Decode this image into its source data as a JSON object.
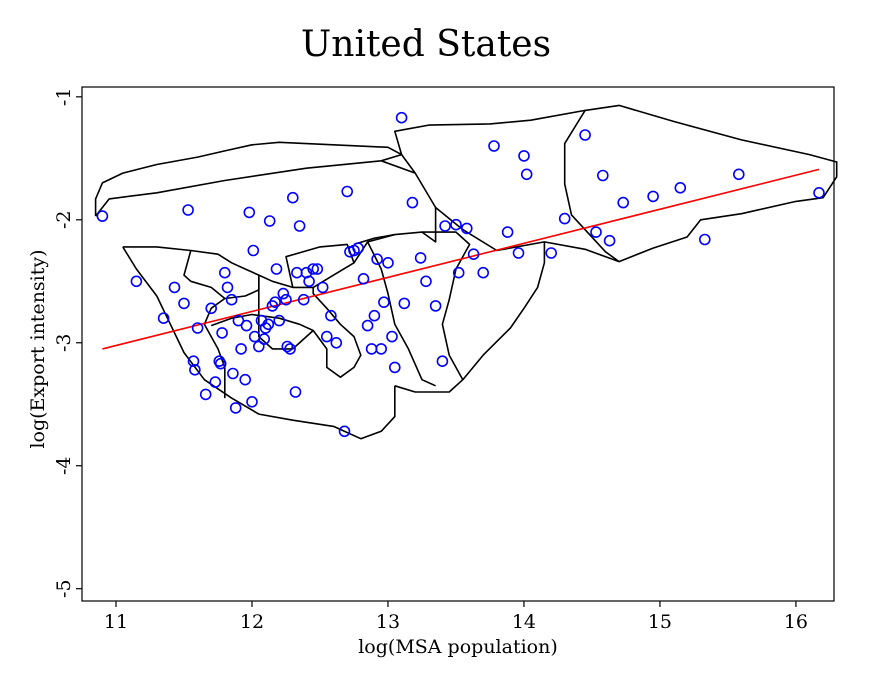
{
  "chart_data": {
    "type": "scatter",
    "title": "United States",
    "xlabel": "log(MSA population)",
    "ylabel": "log(Export intensity)",
    "xlim": [
      10.75,
      16.28
    ],
    "ylim": [
      -5.1,
      -0.92
    ],
    "xticks": [
      {
        "value": 11,
        "label": "11"
      },
      {
        "value": 12,
        "label": "12"
      },
      {
        "value": 13,
        "label": "13"
      },
      {
        "value": 14,
        "label": "14"
      },
      {
        "value": 15,
        "label": "15"
      },
      {
        "value": 16,
        "label": "16"
      }
    ],
    "yticks": [
      {
        "value": -1,
        "label": "-1"
      },
      {
        "value": -2,
        "label": "-2"
      },
      {
        "value": -3,
        "label": "-3"
      },
      {
        "value": -4,
        "label": "-4"
      },
      {
        "value": -5,
        "label": "-5"
      }
    ],
    "grid": false,
    "colors": {
      "points": "#0000ff",
      "fit_line": "#ff0000",
      "regions": "#000000"
    },
    "fit_line": {
      "x": [
        10.9,
        16.17
      ],
      "y": [
        -3.05,
        -1.59
      ]
    },
    "regions": [
      [
        [
          10.85,
          -1.97
        ],
        [
          10.95,
          -1.83
        ],
        [
          11.3,
          -1.78
        ],
        [
          11.8,
          -1.68
        ],
        [
          12.4,
          -1.58
        ],
        [
          12.95,
          -1.52
        ],
        [
          13.1,
          -1.47
        ],
        [
          13.0,
          -1.41
        ],
        [
          12.2,
          -1.37
        ],
        [
          12.0,
          -1.39
        ],
        [
          11.8,
          -1.44
        ],
        [
          11.6,
          -1.49
        ],
        [
          11.3,
          -1.55
        ],
        [
          11.05,
          -1.62
        ],
        [
          10.9,
          -1.7
        ],
        [
          10.85,
          -1.83
        ],
        [
          10.85,
          -1.97
        ]
      ],
      [
        [
          13.1,
          -1.47
        ],
        [
          13.05,
          -1.28
        ],
        [
          13.3,
          -1.23
        ],
        [
          13.75,
          -1.22
        ],
        [
          14.05,
          -1.19
        ],
        [
          14.45,
          -1.11
        ],
        [
          14.7,
          -1.07
        ],
        [
          15.1,
          -1.2
        ],
        [
          15.6,
          -1.35
        ],
        [
          16.1,
          -1.47
        ],
        [
          16.3,
          -1.53
        ],
        [
          16.3,
          -1.65
        ],
        [
          16.2,
          -1.82
        ],
        [
          16.0,
          -1.85
        ],
        [
          15.6,
          -1.95
        ],
        [
          15.3,
          -2.0
        ],
        [
          15.2,
          -2.14
        ],
        [
          14.95,
          -2.23
        ],
        [
          14.7,
          -2.34
        ],
        [
          14.45,
          -2.24
        ],
        [
          14.15,
          -2.18
        ],
        [
          13.8,
          -2.25
        ],
        [
          13.55,
          -2.08
        ],
        [
          13.35,
          -1.9
        ],
        [
          13.2,
          -1.62
        ],
        [
          13.1,
          -1.47
        ]
      ],
      [
        [
          14.45,
          -1.11
        ],
        [
          14.3,
          -1.38
        ],
        [
          14.3,
          -1.71
        ],
        [
          14.35,
          -1.96
        ],
        [
          14.6,
          -2.26
        ],
        [
          14.7,
          -2.34
        ]
      ],
      [
        [
          12.95,
          -1.52
        ],
        [
          13.2,
          -1.62
        ]
      ],
      [
        [
          11.05,
          -2.22
        ],
        [
          11.15,
          -2.4
        ],
        [
          11.3,
          -2.62
        ],
        [
          11.4,
          -2.85
        ],
        [
          11.5,
          -3.08
        ],
        [
          11.65,
          -3.3
        ],
        [
          11.85,
          -3.45
        ],
        [
          12.05,
          -3.58
        ],
        [
          12.3,
          -3.63
        ],
        [
          12.6,
          -3.68
        ],
        [
          12.8,
          -3.78
        ],
        [
          12.95,
          -3.72
        ],
        [
          13.05,
          -3.6
        ],
        [
          13.05,
          -3.35
        ]
      ],
      [
        [
          13.05,
          -3.35
        ],
        [
          13.2,
          -3.4
        ],
        [
          13.45,
          -3.4
        ],
        [
          13.55,
          -3.3
        ],
        [
          13.7,
          -3.1
        ],
        [
          13.9,
          -2.88
        ],
        [
          14.0,
          -2.72
        ],
        [
          14.1,
          -2.55
        ],
        [
          14.15,
          -2.35
        ],
        [
          14.15,
          -2.18
        ]
      ],
      [
        [
          11.05,
          -2.22
        ],
        [
          11.3,
          -2.22
        ],
        [
          11.55,
          -2.25
        ],
        [
          11.75,
          -2.28
        ],
        [
          11.85,
          -2.35
        ],
        [
          11.95,
          -2.4
        ],
        [
          12.05,
          -2.45
        ],
        [
          12.15,
          -2.5
        ],
        [
          12.3,
          -2.55
        ],
        [
          12.45,
          -2.55
        ],
        [
          12.6,
          -2.45
        ],
        [
          12.75,
          -2.35
        ],
        [
          12.85,
          -2.18
        ],
        [
          13.05,
          -2.12
        ],
        [
          13.25,
          -2.1
        ],
        [
          13.35,
          -2.18
        ],
        [
          13.35,
          -1.9
        ]
      ],
      [
        [
          11.55,
          -2.25
        ],
        [
          11.5,
          -2.45
        ],
        [
          11.55,
          -2.5
        ],
        [
          11.7,
          -2.55
        ],
        [
          11.8,
          -2.64
        ],
        [
          11.95,
          -2.62
        ],
        [
          12.05,
          -2.57
        ],
        [
          12.05,
          -2.45
        ]
      ],
      [
        [
          11.8,
          -2.64
        ],
        [
          11.7,
          -2.72
        ],
        [
          11.65,
          -2.85
        ],
        [
          11.7,
          -2.95
        ],
        [
          11.75,
          -3.05
        ],
        [
          11.8,
          -3.2
        ],
        [
          11.8,
          -3.45
        ]
      ],
      [
        [
          11.7,
          -2.86
        ],
        [
          11.85,
          -2.8
        ],
        [
          12.0,
          -2.77
        ],
        [
          12.2,
          -2.8
        ],
        [
          12.35,
          -2.85
        ],
        [
          12.45,
          -2.9
        ],
        [
          12.55,
          -3.05
        ],
        [
          12.55,
          -3.2
        ],
        [
          12.65,
          -3.28
        ],
        [
          12.75,
          -3.2
        ],
        [
          12.8,
          -3.1
        ],
        [
          12.75,
          -2.95
        ],
        [
          12.65,
          -2.85
        ],
        [
          12.55,
          -2.72
        ],
        [
          12.45,
          -2.6
        ],
        [
          12.45,
          -2.55
        ]
      ],
      [
        [
          12.05,
          -2.45
        ],
        [
          12.05,
          -2.62
        ],
        [
          12.05,
          -2.95
        ],
        [
          12.15,
          -3.05
        ],
        [
          12.3,
          -3.05
        ],
        [
          12.45,
          -2.9
        ]
      ],
      [
        [
          12.3,
          -2.55
        ],
        [
          12.25,
          -2.3
        ],
        [
          12.5,
          -2.22
        ],
        [
          12.7,
          -2.2
        ],
        [
          12.75,
          -2.35
        ]
      ],
      [
        [
          12.75,
          -2.2
        ],
        [
          12.9,
          -2.15
        ],
        [
          13.05,
          -2.12
        ]
      ],
      [
        [
          12.85,
          -2.18
        ],
        [
          12.95,
          -2.4
        ],
        [
          13.0,
          -2.6
        ],
        [
          13.05,
          -2.85
        ],
        [
          13.15,
          -3.05
        ],
        [
          13.25,
          -3.3
        ],
        [
          13.35,
          -3.35
        ]
      ],
      [
        [
          13.25,
          -2.1
        ],
        [
          13.5,
          -2.1
        ],
        [
          13.6,
          -2.2
        ],
        [
          13.5,
          -2.4
        ],
        [
          13.45,
          -2.65
        ],
        [
          13.4,
          -2.85
        ],
        [
          13.45,
          -3.1
        ],
        [
          13.55,
          -3.3
        ]
      ]
    ],
    "series": [
      {
        "x": [
          10.9,
          11.15,
          11.35,
          11.43,
          11.5,
          11.53,
          11.57,
          11.58,
          11.6,
          11.66,
          11.7,
          11.73,
          11.76,
          11.77,
          11.78,
          11.8,
          11.82,
          11.85,
          11.86,
          11.88,
          11.9,
          11.92,
          11.95,
          11.96,
          11.98,
          12.0,
          12.01,
          12.02,
          12.05,
          12.07,
          12.09,
          12.1,
          12.12,
          12.13,
          12.15,
          12.17,
          12.18,
          12.2,
          12.23,
          12.25,
          12.26,
          12.28,
          12.3,
          12.32,
          12.33,
          12.35,
          12.38,
          12.4,
          12.42,
          12.45,
          12.48,
          12.52,
          12.55,
          12.58,
          12.62,
          12.68,
          12.7,
          12.72,
          12.75,
          12.78,
          12.82,
          12.85,
          12.88,
          12.9,
          12.92,
          12.95,
          12.97,
          13.0,
          13.03,
          13.05,
          13.1,
          13.12,
          13.18,
          13.24,
          13.28,
          13.35,
          13.4,
          13.42,
          13.5,
          13.52,
          13.58,
          13.63,
          13.7,
          13.78,
          13.88,
          13.96,
          14.0,
          14.02,
          14.2,
          14.3,
          14.45,
          14.53,
          14.58,
          14.63,
          14.73,
          14.95,
          15.15,
          15.33,
          15.58,
          16.17
        ],
        "y": [
          -1.97,
          -2.5,
          -2.8,
          -2.55,
          -2.68,
          -1.92,
          -3.15,
          -3.22,
          -2.88,
          -3.42,
          -2.72,
          -3.32,
          -3.15,
          -3.17,
          -2.92,
          -2.43,
          -2.55,
          -2.65,
          -3.25,
          -3.53,
          -2.82,
          -3.05,
          -3.3,
          -2.86,
          -1.94,
          -3.48,
          -2.25,
          -2.95,
          -3.03,
          -2.82,
          -2.97,
          -2.88,
          -2.85,
          -2.01,
          -2.7,
          -2.67,
          -2.4,
          -2.82,
          -2.6,
          -2.65,
          -3.03,
          -3.05,
          -1.82,
          -3.4,
          -2.43,
          -2.05,
          -2.65,
          -2.43,
          -2.5,
          -2.4,
          -2.4,
          -2.55,
          -2.95,
          -2.78,
          -3.0,
          -3.72,
          -1.77,
          -2.26,
          -2.25,
          -2.23,
          -2.48,
          -2.86,
          -3.05,
          -2.78,
          -2.32,
          -3.05,
          -2.67,
          -2.35,
          -2.95,
          -3.2,
          -1.17,
          -2.68,
          -1.86,
          -2.31,
          -2.5,
          -2.7,
          -3.15,
          -2.05,
          -2.04,
          -2.43,
          -2.07,
          -2.28,
          -2.43,
          -1.4,
          -2.1,
          -2.27,
          -1.48,
          -1.63,
          -2.27,
          -1.99,
          -1.31,
          -2.1,
          -1.64,
          -2.17,
          -1.86,
          -1.81,
          -1.74,
          -2.16,
          -1.63,
          -1.78
        ]
      }
    ]
  }
}
